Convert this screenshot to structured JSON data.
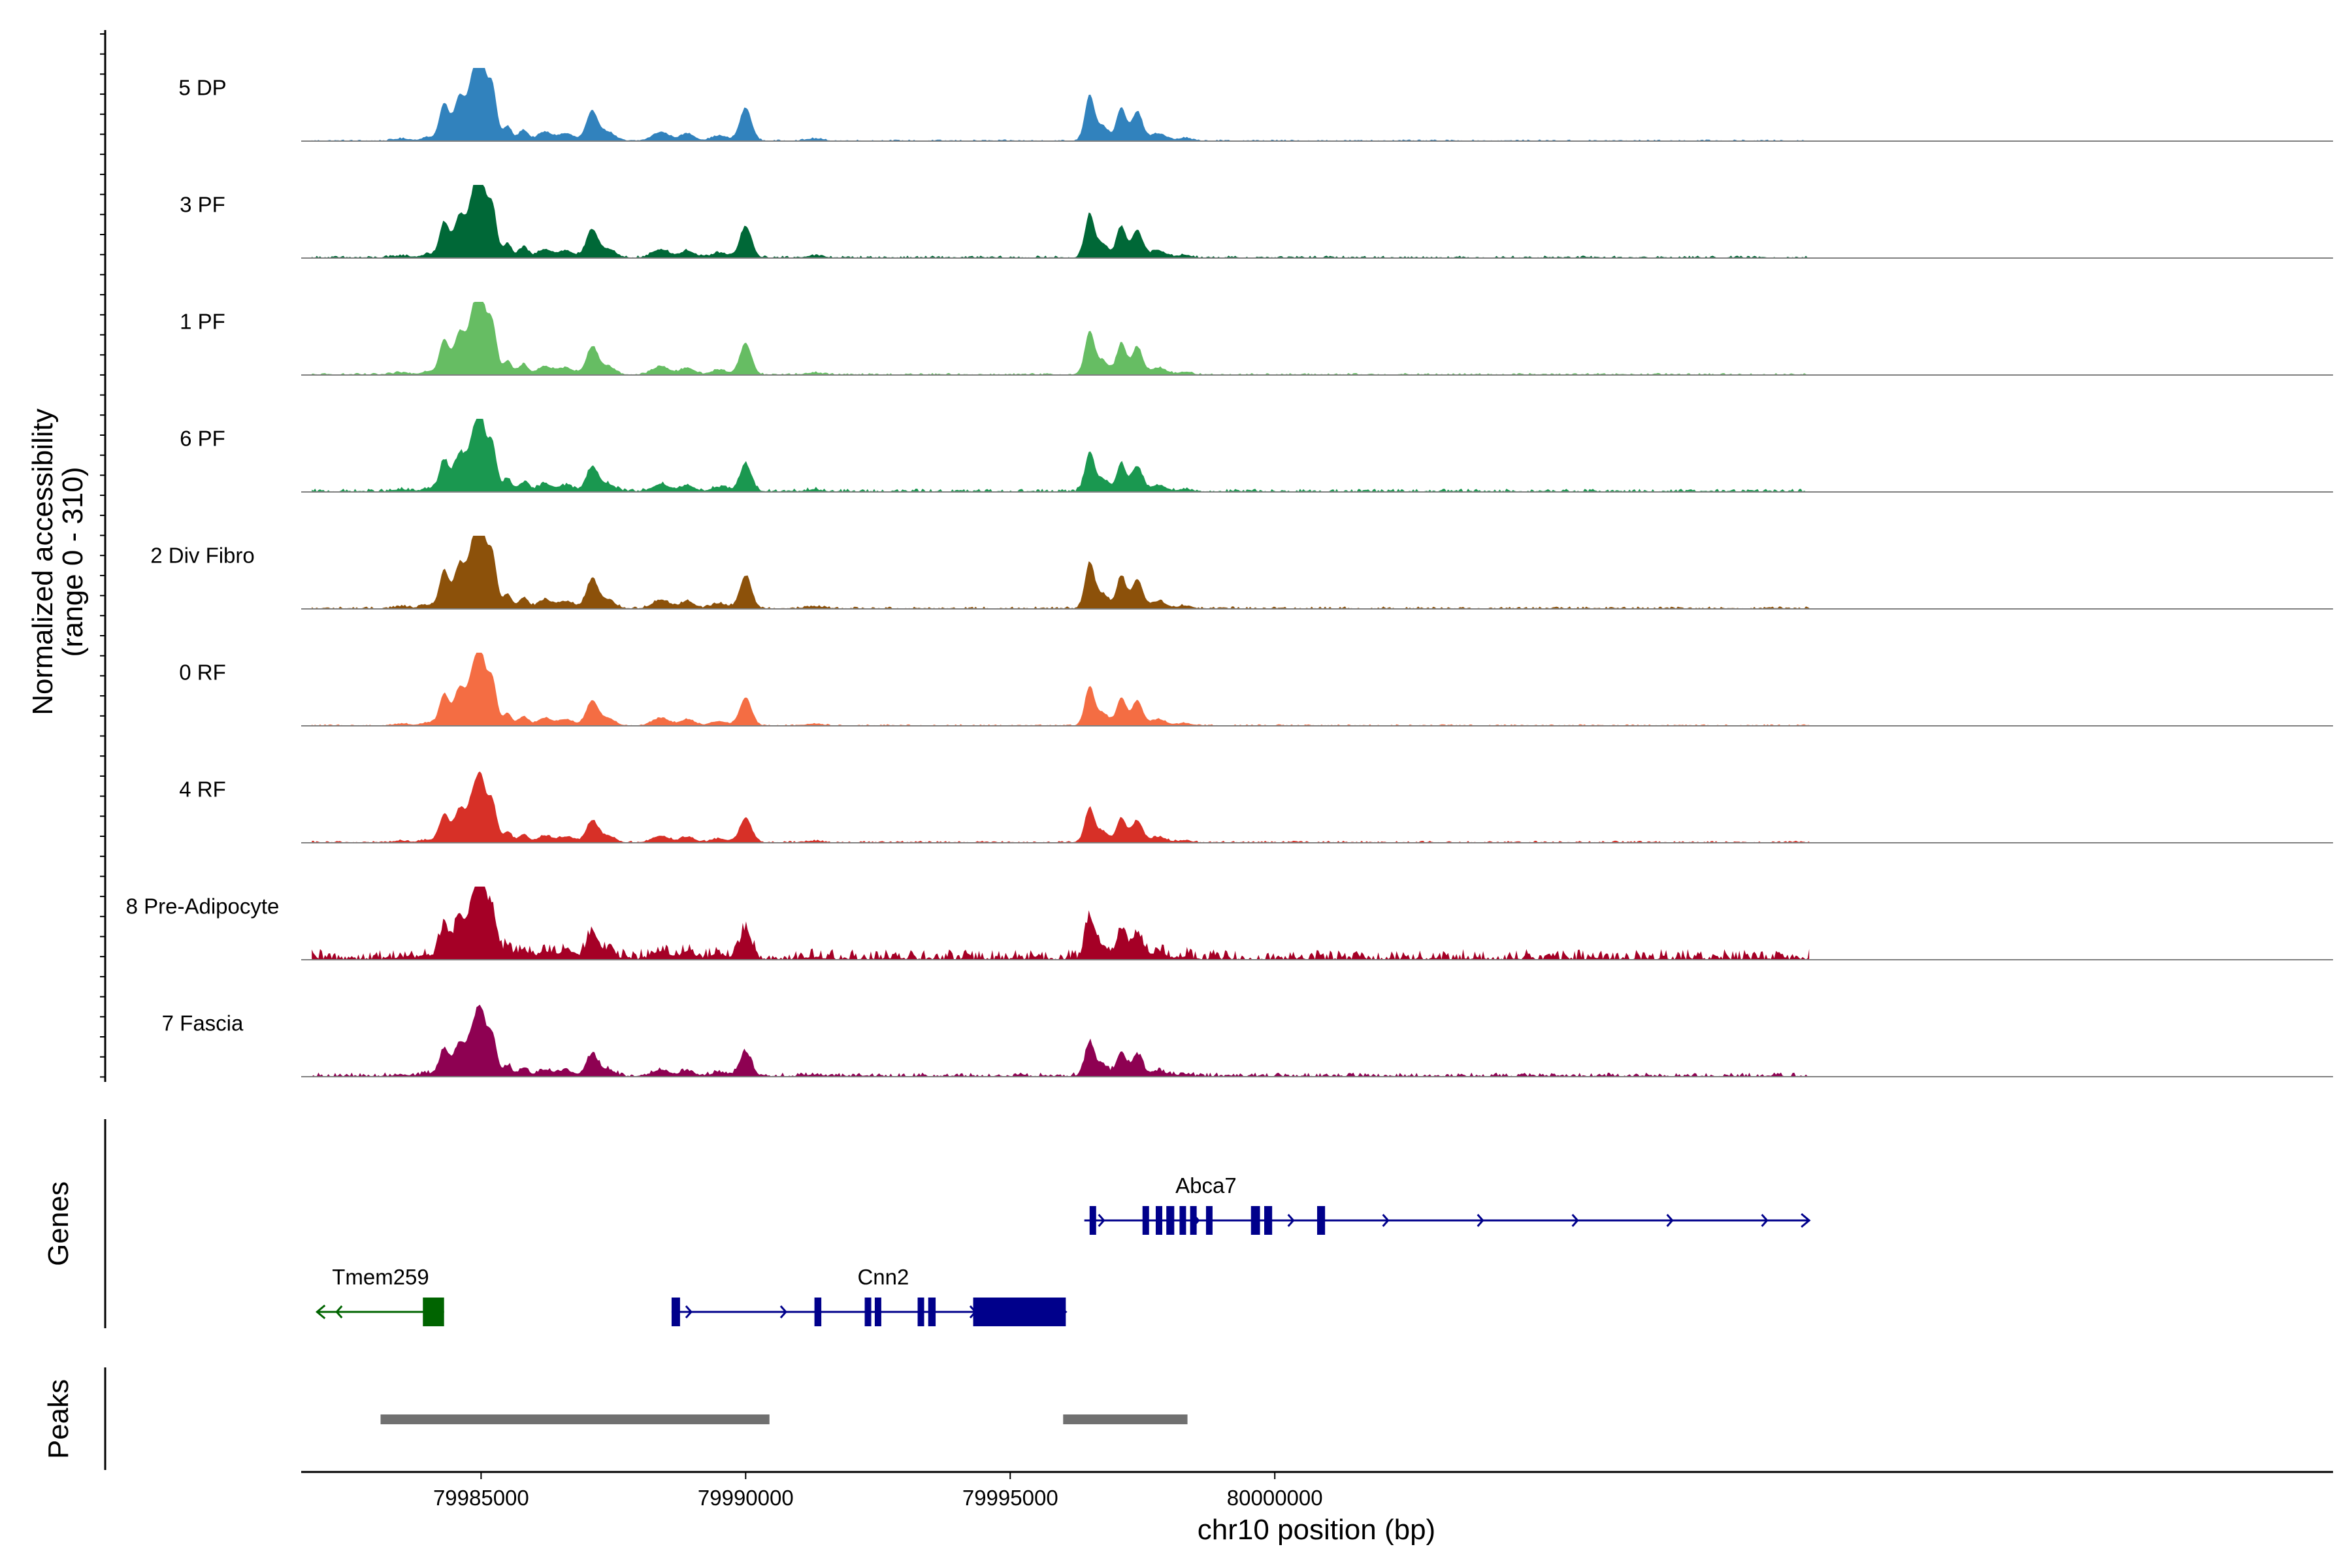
{
  "chart_data": {
    "type": "area",
    "title": "",
    "ylabel": "Normalized accessibility",
    "ylabel_range": "(range 0 - 310)",
    "ylim": [
      0,
      310
    ],
    "xlabel": "chr10 position (bp)",
    "xlim": [
      79981600,
      80020000
    ],
    "x_ticks": [
      79985000,
      79990000,
      79995000,
      80000000
    ],
    "x_tick_labels": [
      "79985000",
      "79990000",
      "79995000",
      "80000000"
    ],
    "tracks": [
      {
        "name": "5 DP",
        "color": "#3182BD",
        "scale": 1.0,
        "noise": 0.3,
        "region_start": 79981800,
        "region_end": 80010100
      },
      {
        "name": "3 PF",
        "color": "#006837",
        "scale": 0.95,
        "noise": 0.5,
        "region_start": 79981800,
        "region_end": 80010100
      },
      {
        "name": "1 PF",
        "color": "#66BD63",
        "scale": 0.95,
        "noise": 0.4,
        "region_start": 79981800,
        "region_end": 80010100
      },
      {
        "name": "6 PF",
        "color": "#1A9850",
        "scale": 0.85,
        "noise": 0.7,
        "region_start": 79981800,
        "region_end": 80010100
      },
      {
        "name": "2 Div Fibro",
        "color": "#8C510A",
        "scale": 1.0,
        "noise": 0.5,
        "region_start": 79981800,
        "region_end": 80010100
      },
      {
        "name": "0 RF",
        "color": "#F46D43",
        "scale": 0.85,
        "noise": 0.3,
        "region_start": 79981800,
        "region_end": 80010100
      },
      {
        "name": "4 RF",
        "color": "#D73027",
        "scale": 0.75,
        "noise": 0.4,
        "region_start": 79981800,
        "region_end": 80010100
      },
      {
        "name": "8 Pre-Adipocyte",
        "color": "#A50026",
        "scale": 0.9,
        "noise": 2.4,
        "region_start": 79981800,
        "region_end": 80010100
      },
      {
        "name": "7 Fascia",
        "color": "#8E0152",
        "scale": 0.75,
        "noise": 0.9,
        "region_start": 79981800,
        "region_end": 80010100
      }
    ],
    "peak_profile": [
      {
        "center": 79983500,
        "width": 150,
        "height": 0.03
      },
      {
        "center": 79984000,
        "width": 120,
        "height": 0.05
      },
      {
        "center": 79984300,
        "width": 90,
        "height": 0.5
      },
      {
        "center": 79984600,
        "width": 110,
        "height": 0.62
      },
      {
        "center": 79984850,
        "width": 90,
        "height": 0.8
      },
      {
        "center": 79985000,
        "width": 80,
        "height": 1.0
      },
      {
        "center": 79985200,
        "width": 90,
        "height": 0.8
      },
      {
        "center": 79985500,
        "width": 80,
        "height": 0.2
      },
      {
        "center": 79985800,
        "width": 90,
        "height": 0.15
      },
      {
        "center": 79986200,
        "width": 130,
        "height": 0.12
      },
      {
        "center": 79986600,
        "width": 150,
        "height": 0.1
      },
      {
        "center": 79987100,
        "width": 110,
        "height": 0.4
      },
      {
        "center": 79987400,
        "width": 130,
        "height": 0.12
      },
      {
        "center": 79988400,
        "width": 160,
        "height": 0.12
      },
      {
        "center": 79988900,
        "width": 130,
        "height": 0.1
      },
      {
        "center": 79989500,
        "width": 150,
        "height": 0.07
      },
      {
        "center": 79990000,
        "width": 110,
        "height": 0.45
      },
      {
        "center": 79991300,
        "width": 150,
        "height": 0.03
      },
      {
        "center": 79996500,
        "width": 90,
        "height": 0.62
      },
      {
        "center": 79996750,
        "width": 110,
        "height": 0.2
      },
      {
        "center": 79997100,
        "width": 90,
        "height": 0.45
      },
      {
        "center": 79997400,
        "width": 100,
        "height": 0.4
      },
      {
        "center": 79997800,
        "width": 150,
        "height": 0.1
      },
      {
        "center": 79998300,
        "width": 120,
        "height": 0.04
      }
    ],
    "genes": [
      {
        "name": "Tmem259",
        "start": 79981900,
        "end": 79984300,
        "strand": "-",
        "color": "#006400",
        "row": 2,
        "exons": [
          [
            79983900,
            79984300
          ]
        ]
      },
      {
        "name": "Cnn2",
        "start": 79988600,
        "end": 79996050,
        "strand": "+",
        "color": "#00008B",
        "row": 2,
        "exons": [
          [
            79988600,
            79988760
          ],
          [
            79991300,
            79991430
          ],
          [
            79992250,
            79992330
          ],
          [
            79992440,
            79992560
          ],
          [
            79993250,
            79993360
          ],
          [
            79993450,
            79993590
          ],
          [
            79994300,
            79996050
          ]
        ]
      },
      {
        "name": "Abca7",
        "start": 79996400,
        "end": 80010100,
        "strand": "+",
        "color": "#00008B",
        "row": 1,
        "exons": [
          [
            79996500,
            79996620
          ],
          [
            79997500,
            79997620
          ],
          [
            79997750,
            79997850
          ],
          [
            79997950,
            79998100
          ],
          [
            79998200,
            79998310
          ],
          [
            79998400,
            79998450
          ],
          [
            79998700,
            79998810
          ],
          [
            79999550,
            79999720
          ],
          [
            79999800,
            79999950
          ],
          [
            80000800,
            80000950
          ]
        ]
      }
    ],
    "peaks": [
      {
        "start": 79983100,
        "end": 79990450
      },
      {
        "start": 79996000,
        "end": 79998350
      }
    ],
    "panel_labels": {
      "genes": "Genes",
      "peaks": "Peaks"
    }
  }
}
